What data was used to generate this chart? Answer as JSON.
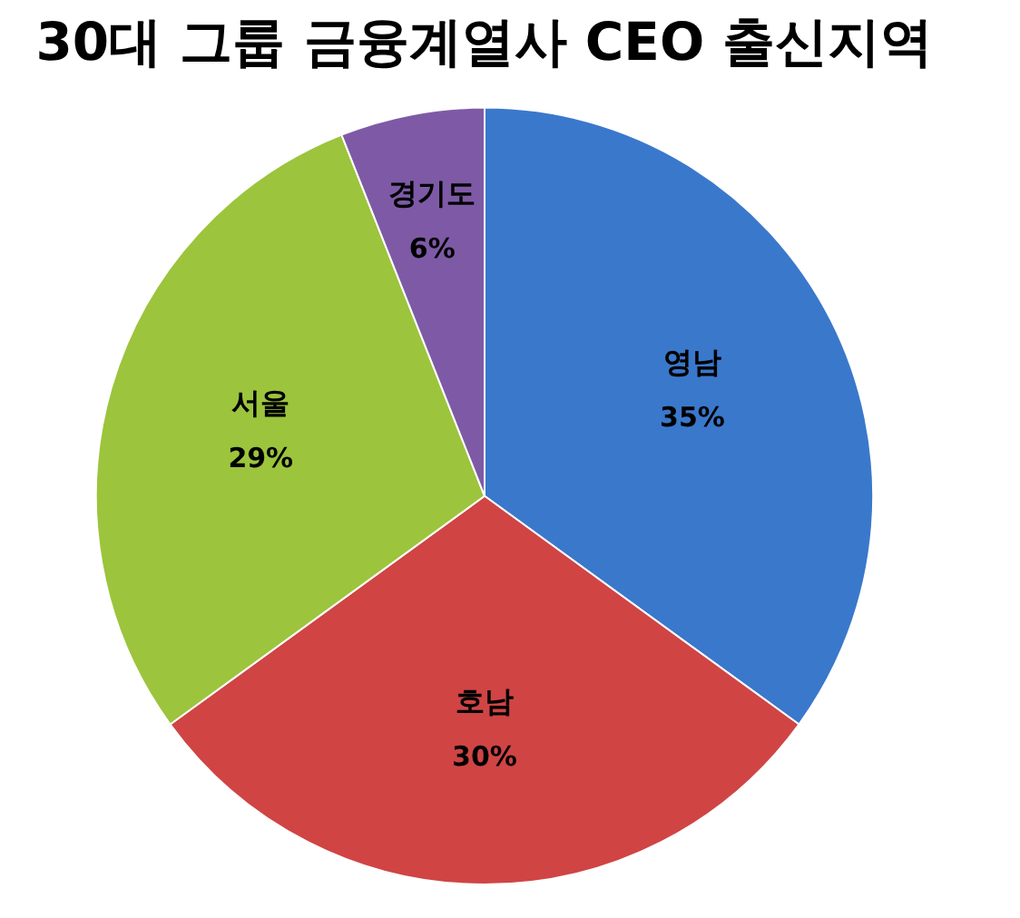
{
  "chart_data": {
    "type": "pie",
    "title": "30대 그룹 금융계열사 CEO 출신지역",
    "categories": [
      "영남",
      "호남",
      "서울",
      "경기도"
    ],
    "values": [
      35,
      30,
      29,
      6
    ],
    "colors": [
      "#3a78cc",
      "#d04444",
      "#9cc43c",
      "#7e5aa6"
    ],
    "value_labels": [
      "35%",
      "30%",
      "29%",
      "6%"
    ],
    "legend": false
  }
}
